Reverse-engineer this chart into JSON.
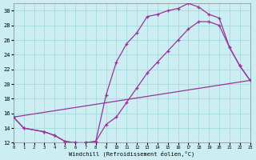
{
  "background_color": "#cceef2",
  "grid_color": "#aadddf",
  "line_color": "#993399",
  "xlabel": "Windchill (Refroidissement éolien,°C)",
  "xlim": [
    0,
    23
  ],
  "ylim": [
    12,
    31
  ],
  "yticks": [
    12,
    14,
    16,
    18,
    20,
    22,
    24,
    26,
    28,
    30
  ],
  "xticks": [
    0,
    1,
    2,
    3,
    4,
    5,
    6,
    7,
    8,
    9,
    10,
    11,
    12,
    13,
    14,
    15,
    16,
    17,
    18,
    19,
    20,
    21,
    22,
    23
  ],
  "curve1_x": [
    0,
    1,
    3,
    4,
    5,
    6,
    7,
    8,
    9,
    10,
    11,
    12,
    13,
    14,
    15,
    16,
    17,
    18,
    19,
    20,
    21,
    22,
    23
  ],
  "curve1_y": [
    15.5,
    14.0,
    13.5,
    13.0,
    12.2,
    12.0,
    12.0,
    12.2,
    18.5,
    23.0,
    25.5,
    27.0,
    29.2,
    29.5,
    30.0,
    30.3,
    31.0,
    30.5,
    29.5,
    29.0,
    25.0,
    22.5,
    20.5
  ],
  "curve2_x": [
    0,
    1,
    3,
    4,
    5,
    6,
    7,
    8,
    9,
    10,
    11,
    12,
    13,
    14,
    15,
    16,
    17,
    18,
    19,
    20,
    21,
    22,
    23
  ],
  "curve2_y": [
    15.5,
    14.0,
    13.5,
    13.0,
    12.2,
    12.0,
    12.0,
    12.2,
    14.5,
    15.5,
    17.5,
    19.5,
    21.5,
    23.0,
    24.5,
    26.0,
    27.5,
    28.5,
    28.5,
    28.0,
    25.0,
    22.5,
    20.5
  ],
  "curve3_x": [
    0,
    23
  ],
  "curve3_y": [
    15.5,
    20.5
  ]
}
